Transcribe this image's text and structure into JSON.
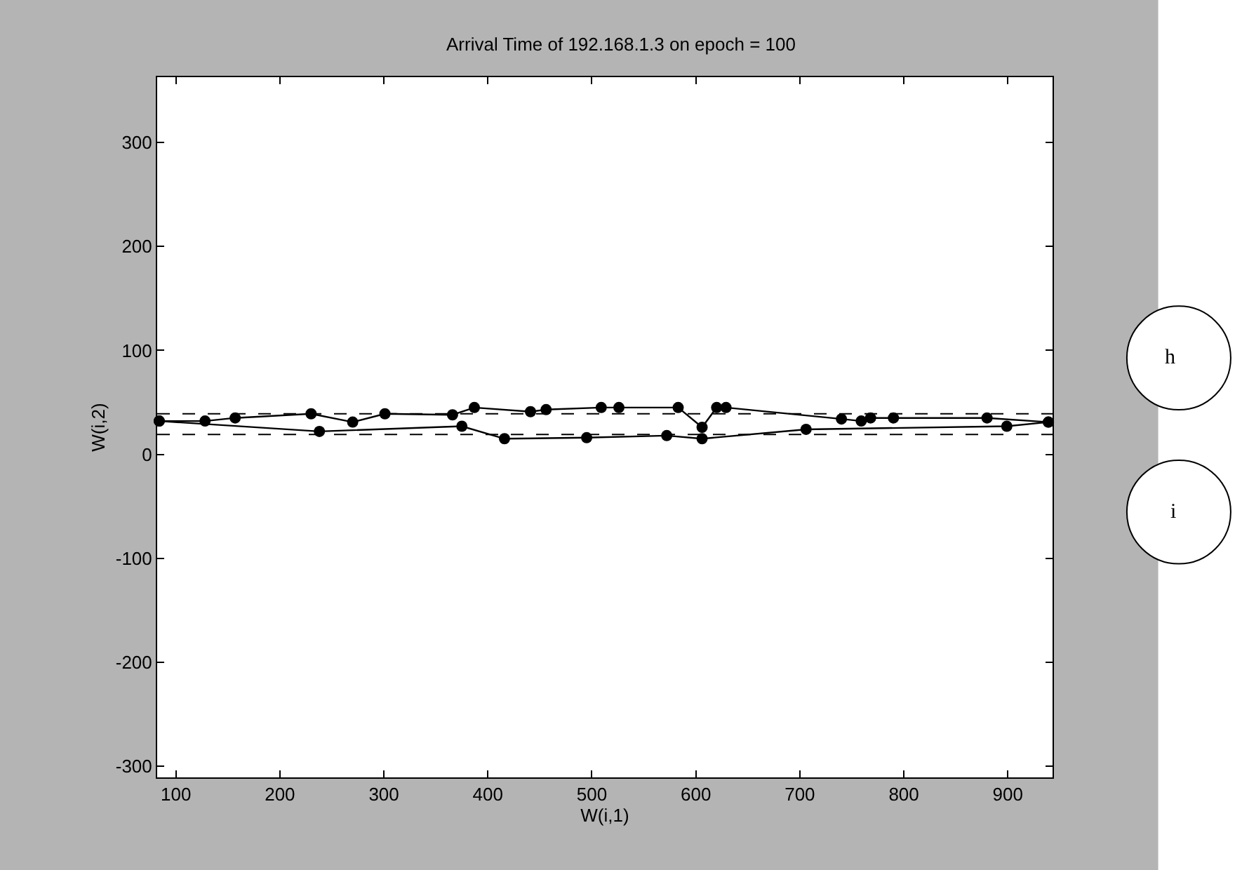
{
  "chart_data": {
    "type": "line",
    "title": "Arrival Time of 192.168.1.3 on epoch = 100",
    "xlabel": "W(i,1)",
    "ylabel": "W(i,2)",
    "series": [
      {
        "color": "#000000",
        "x": [
          84,
          128,
          157,
          230,
          270,
          301,
          366,
          387,
          441,
          456,
          509,
          526,
          583,
          606,
          620,
          629,
          740,
          759,
          768,
          790,
          880,
          939
        ],
        "values": [
          32,
          32,
          35,
          39,
          31,
          39,
          38,
          45,
          41,
          43,
          45,
          45,
          45,
          26,
          45,
          45,
          34,
          32,
          35,
          35,
          35,
          31
        ]
      },
      {
        "color": "#000000",
        "x": [
          84,
          238,
          375,
          416,
          495,
          572,
          606,
          706,
          899,
          939
        ],
        "values": [
          32,
          22,
          27,
          15,
          16,
          18,
          15,
          24,
          27,
          31
        ]
      }
    ],
    "xlim": [
      82,
      943
    ],
    "xticks": [
      100,
      200,
      300,
      400,
      500,
      600,
      700,
      800,
      900
    ],
    "ylim": [
      -311,
      363
    ],
    "yticks": [
      -300,
      -200,
      -100,
      0,
      100,
      200,
      300
    ],
    "ref_lines": [
      {
        "axis": "y",
        "value": 39,
        "color": "#000000",
        "line_style": "dashed"
      },
      {
        "axis": "y",
        "value": 19,
        "color": "#000000",
        "line_style": "dashed"
      }
    ],
    "annotations": [
      "h",
      "i"
    ],
    "marker": "circle",
    "line_style": "solid",
    "legend": false
  }
}
